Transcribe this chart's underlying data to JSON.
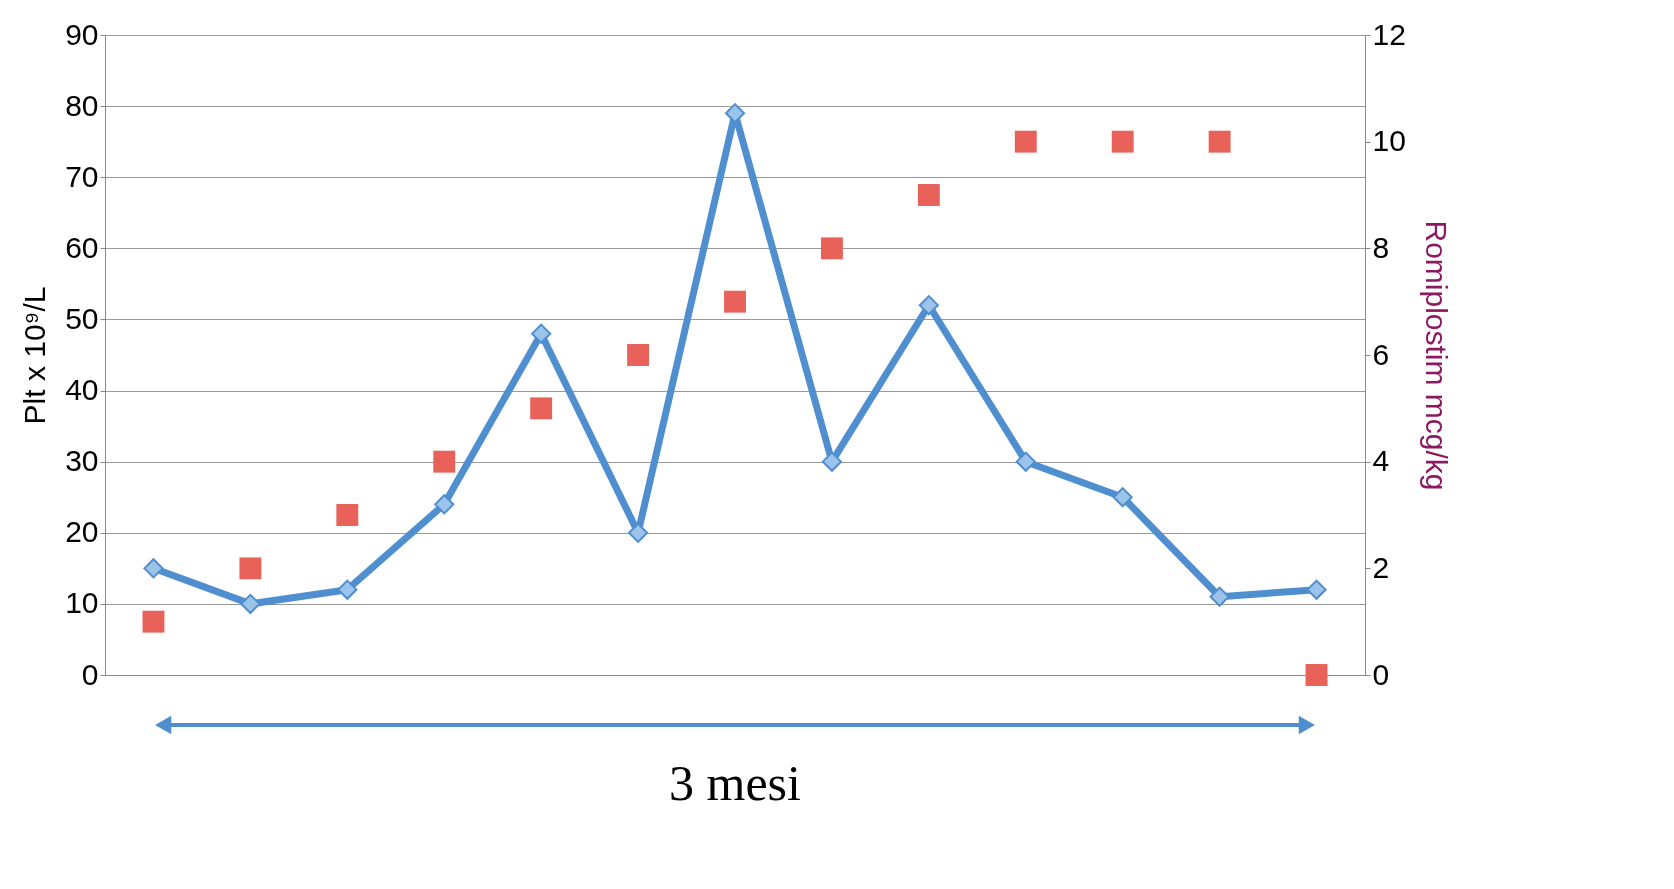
{
  "chart_data": {
    "type": "line",
    "categories": [
      null,
      null,
      null,
      null,
      null,
      null,
      null,
      null,
      null,
      null,
      null,
      null,
      null
    ],
    "series": [
      {
        "color": "#4f8fd0",
        "marker": "diamond",
        "values": [
          15,
          10,
          12,
          24,
          48,
          20,
          79,
          30,
          52,
          30,
          25,
          11,
          12
        ]
      },
      {
        "type": "scatter",
        "color": "#e8625a",
        "marker": "square",
        "axis": "y2",
        "values": [
          1,
          2,
          3,
          4,
          5,
          6,
          7,
          8,
          9,
          10,
          10,
          10,
          0
        ]
      }
    ],
    "ylabel": "Plt x 10⁹/L",
    "y2label": "Romiplostim mcg/kg",
    "ylim": [
      0,
      90
    ],
    "yticks": [
      0,
      10,
      20,
      30,
      40,
      50,
      60,
      70,
      80,
      90
    ],
    "y2lim": [
      0,
      12
    ],
    "y2ticks": [
      0,
      2,
      4,
      6,
      8,
      10,
      12
    ],
    "grid": "y",
    "tick_labels": "y",
    "annotations": [
      "3 mesi"
    ]
  }
}
